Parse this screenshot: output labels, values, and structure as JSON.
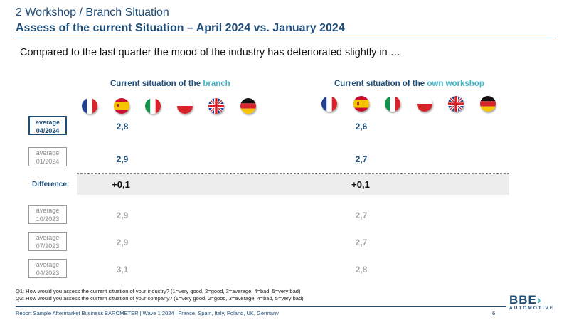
{
  "header": {
    "line1_prefix": "2 Workshop / ",
    "line1_suffix": "Branch Situation",
    "line2": "Assess of the current Situation – April 2024 vs. January 2024"
  },
  "subtitle": "Compared to the last quarter the mood of the industry has deteriorated slightly in …",
  "sections": {
    "branch": {
      "title_prefix": "Current situation of the ",
      "title_highlight": "branch"
    },
    "workshop": {
      "title_prefix": "Current situation of the ",
      "title_highlight": "own workshop"
    }
  },
  "flags": [
    "france-flag-icon",
    "spain-flag-icon",
    "italy-flag-icon",
    "poland-flag-icon",
    "uk-flag-icon",
    "germany-flag-icon"
  ],
  "rows": [
    {
      "label_top": "average",
      "label_bottom": "04/2024",
      "branch": "2,8",
      "workshop": "2,6"
    },
    {
      "label_top": "average",
      "label_bottom": "01/2024",
      "branch": "2,9",
      "workshop": "2,7"
    },
    {
      "label": "Difference:",
      "branch": "+0,1",
      "workshop": "+0,1"
    },
    {
      "label_top": "average",
      "label_bottom": "10/2023",
      "branch": "2,9",
      "workshop": "2,7"
    },
    {
      "label_top": "average",
      "label_bottom": "07/2023",
      "branch": "2,9",
      "workshop": "2,7"
    },
    {
      "label_top": "average",
      "label_bottom": "04/2023",
      "branch": "3,1",
      "workshop": "2,8"
    }
  ],
  "footnotes": {
    "q1": "Q1: How would you assess the current situation of your industry? (1=very good, 2=good, 3=average, 4=bad, 5=very bad)",
    "q2": "Q2: How would you assess the current situation of your company? (1=very good, 2=good, 3=average, 4=bad, 5=very bad)"
  },
  "footer": {
    "text": "Report Sample Aftermarket Business BAROMETER | Wave 1 2024 | France, Spain, Italy, Poland, UK, Germany",
    "page": "6"
  },
  "logo": {
    "main": "BBE",
    "sub": "AUTOMOTIVE"
  },
  "colors": {
    "primary": "#1f4e79",
    "accent": "#3fb5c4",
    "muted": "#a6a6a6"
  }
}
